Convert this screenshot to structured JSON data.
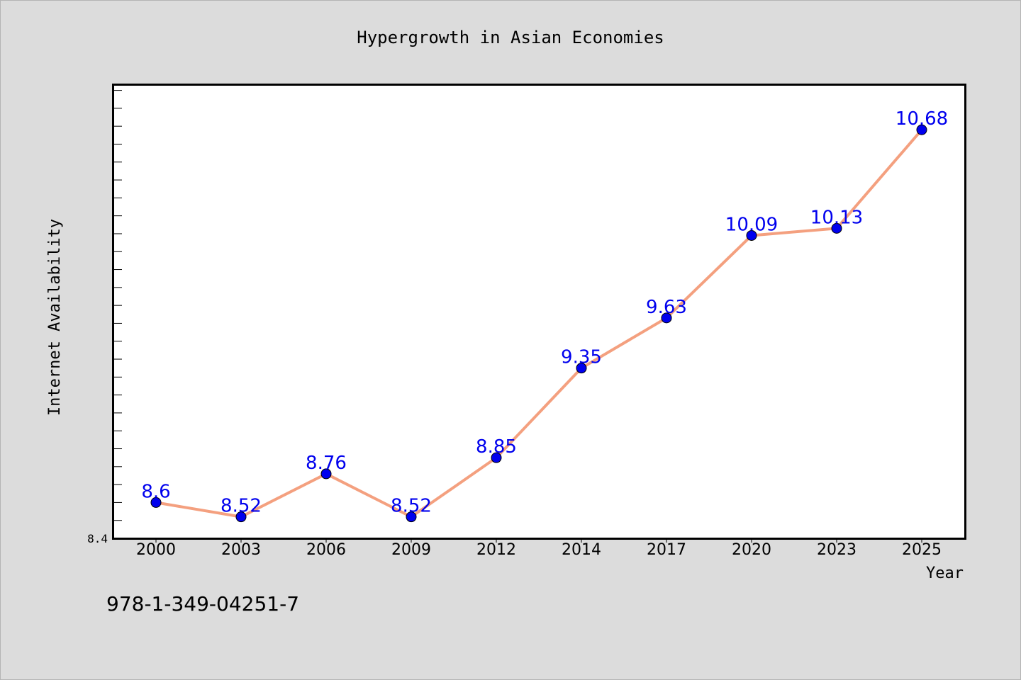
{
  "chart_data": {
    "type": "line",
    "title": "Hypergrowth in Asian Economies",
    "xlabel": "Year",
    "ylabel": "Internet Availability",
    "categories": [
      "2000",
      "2003",
      "2006",
      "2009",
      "2012",
      "2014",
      "2017",
      "2020",
      "2023",
      "2025"
    ],
    "values": [
      8.6,
      8.52,
      8.76,
      8.52,
      8.85,
      9.35,
      9.63,
      10.09,
      10.13,
      10.68
    ],
    "data_labels": [
      "8.6",
      "8.52",
      "8.76",
      "8.52",
      "8.85",
      "9.35",
      "9.63",
      "10.09",
      "10.13",
      "10.68"
    ],
    "ylim": [
      8.4,
      10.93
    ],
    "y_tick_label": "8.4",
    "grid": false,
    "line_color": "#f4a07f",
    "marker_color": "#0000ee",
    "label_color": "#0000ee"
  },
  "footnote": "978-1-349-04251-7"
}
